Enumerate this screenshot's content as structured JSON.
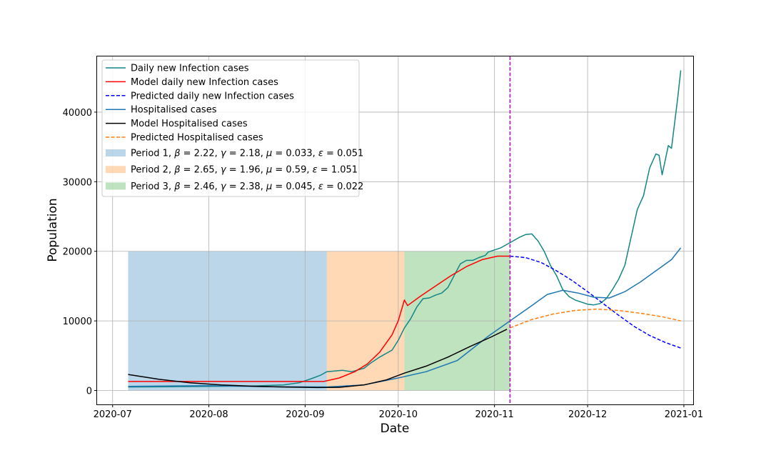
{
  "chart_data": {
    "type": "line",
    "title": "",
    "xlabel": "Date",
    "ylabel": "Population",
    "xlim": [
      "2020-06-26",
      "2021-01-04"
    ],
    "ylim": [
      -2000,
      48000
    ],
    "x_ticks": [
      {
        "date": "2020-07-01",
        "label": "2020-07"
      },
      {
        "date": "2020-08-01",
        "label": "2020-08"
      },
      {
        "date": "2020-09-01",
        "label": "2020-09"
      },
      {
        "date": "2020-10-01",
        "label": "2020-10"
      },
      {
        "date": "2020-11-01",
        "label": "2020-11"
      },
      {
        "date": "2020-12-01",
        "label": "2020-12"
      },
      {
        "date": "2021-01-01",
        "label": "2021-01"
      }
    ],
    "y_ticks": [
      {
        "value": 0,
        "label": "0"
      },
      {
        "value": 10000,
        "label": "10000"
      },
      {
        "value": 20000,
        "label": "20000"
      },
      {
        "value": 30000,
        "label": "30000"
      },
      {
        "value": 40000,
        "label": "40000"
      }
    ],
    "grid": true,
    "legend_position": "top-left",
    "periods": [
      {
        "name": "Period 1",
        "beta": "2.22",
        "gamma": "2.18",
        "mu": "0.033",
        "epsilon": "0.051",
        "start": "2020-07-06",
        "end": "2020-09-08",
        "y_max": 20000,
        "color": "#1f77b4"
      },
      {
        "name": "Period 2",
        "beta": "2.65",
        "gamma": "1.96",
        "mu": "0.59",
        "epsilon": "1.051",
        "start": "2020-09-08",
        "end": "2020-10-03",
        "y_max": 20000,
        "color": "#ff7f0e"
      },
      {
        "name": "Period 3",
        "beta": "2.46",
        "gamma": "2.38",
        "mu": "0.045",
        "epsilon": "0.022",
        "start": "2020-10-03",
        "end": "2020-11-06",
        "y_max": 20000,
        "color": "#2ca02c"
      }
    ],
    "vline": {
      "date": "2020-11-06",
      "color": "#bf00bf"
    },
    "series": [
      {
        "name": "Daily new Infection cases",
        "color": "#138686",
        "dash": "solid",
        "points": [
          [
            "2020-07-06",
            500
          ],
          [
            "2020-07-20",
            550
          ],
          [
            "2020-08-01",
            600
          ],
          [
            "2020-08-15",
            650
          ],
          [
            "2020-08-25",
            800
          ],
          [
            "2020-08-30",
            1100
          ],
          [
            "2020-09-03",
            1700
          ],
          [
            "2020-09-06",
            2200
          ],
          [
            "2020-09-08",
            2700
          ],
          [
            "2020-09-13",
            2900
          ],
          [
            "2020-09-16",
            2700
          ],
          [
            "2020-09-20",
            3200
          ],
          [
            "2020-09-22",
            3900
          ],
          [
            "2020-09-25",
            4800
          ],
          [
            "2020-09-29",
            5800
          ],
          [
            "2020-10-01",
            7200
          ],
          [
            "2020-10-03",
            9000
          ],
          [
            "2020-10-05",
            10300
          ],
          [
            "2020-10-07",
            12000
          ],
          [
            "2020-10-09",
            13200
          ],
          [
            "2020-10-11",
            13300
          ],
          [
            "2020-10-13",
            13700
          ],
          [
            "2020-10-15",
            14000
          ],
          [
            "2020-10-17",
            14800
          ],
          [
            "2020-10-19",
            16500
          ],
          [
            "2020-10-21",
            18200
          ],
          [
            "2020-10-23",
            18700
          ],
          [
            "2020-10-25",
            18700
          ],
          [
            "2020-10-27",
            19100
          ],
          [
            "2020-10-29",
            19400
          ],
          [
            "2020-10-30",
            19900
          ],
          [
            "2020-11-01",
            20200
          ],
          [
            "2020-11-03",
            20500
          ],
          [
            "2020-11-05",
            21000
          ],
          [
            "2020-11-07",
            21500
          ],
          [
            "2020-11-09",
            22000
          ],
          [
            "2020-11-11",
            22400
          ],
          [
            "2020-11-13",
            22500
          ],
          [
            "2020-11-15",
            21500
          ],
          [
            "2020-11-17",
            20000
          ],
          [
            "2020-11-19",
            18000
          ],
          [
            "2020-11-21",
            16500
          ],
          [
            "2020-11-23",
            14500
          ],
          [
            "2020-11-25",
            13500
          ],
          [
            "2020-11-27",
            13000
          ],
          [
            "2020-11-29",
            12700
          ],
          [
            "2020-12-01",
            12400
          ],
          [
            "2020-12-03",
            12300
          ],
          [
            "2020-12-05",
            12500
          ],
          [
            "2020-12-07",
            13200
          ],
          [
            "2020-12-09",
            14500
          ],
          [
            "2020-12-11",
            16000
          ],
          [
            "2020-12-13",
            18000
          ],
          [
            "2020-12-15",
            22000
          ],
          [
            "2020-12-17",
            26000
          ],
          [
            "2020-12-19",
            28000
          ],
          [
            "2020-12-21",
            32000
          ],
          [
            "2020-12-23",
            34000
          ],
          [
            "2020-12-24",
            33800
          ],
          [
            "2020-12-25",
            31000
          ],
          [
            "2020-12-27",
            35200
          ],
          [
            "2020-12-28",
            34800
          ],
          [
            "2020-12-30",
            42000
          ],
          [
            "2020-12-31",
            46000
          ]
        ]
      },
      {
        "name": "Model daily new Infection cases",
        "color": "#ff0000",
        "dash": "solid",
        "points": [
          [
            "2020-07-06",
            1300
          ],
          [
            "2020-08-01",
            1300
          ],
          [
            "2020-09-07",
            1300
          ],
          [
            "2020-09-12",
            1800
          ],
          [
            "2020-09-17",
            2700
          ],
          [
            "2020-09-21",
            3800
          ],
          [
            "2020-09-25",
            5500
          ],
          [
            "2020-09-29",
            8000
          ],
          [
            "2020-10-01",
            10000
          ],
          [
            "2020-10-03",
            13000
          ],
          [
            "2020-10-04",
            12200
          ],
          [
            "2020-10-08",
            13500
          ],
          [
            "2020-10-13",
            15000
          ],
          [
            "2020-10-18",
            16500
          ],
          [
            "2020-10-23",
            17800
          ],
          [
            "2020-10-28",
            18800
          ],
          [
            "2020-11-02",
            19300
          ],
          [
            "2020-11-06",
            19300
          ]
        ]
      },
      {
        "name": "Predicted daily new  Infection cases",
        "color": "#0000ff",
        "dash": "dashed",
        "points": [
          [
            "2020-11-06",
            19300
          ],
          [
            "2020-11-11",
            19100
          ],
          [
            "2020-11-16",
            18400
          ],
          [
            "2020-11-21",
            17200
          ],
          [
            "2020-11-26",
            15800
          ],
          [
            "2020-12-01",
            14200
          ],
          [
            "2020-12-06",
            12500
          ],
          [
            "2020-12-11",
            10800
          ],
          [
            "2020-12-16",
            9200
          ],
          [
            "2020-12-21",
            7900
          ],
          [
            "2020-12-26",
            6900
          ],
          [
            "2020-12-31",
            6100
          ]
        ]
      },
      {
        "name": "Hospitalised cases",
        "color": "#1f77b4",
        "dash": "solid",
        "points": [
          [
            "2020-07-06",
            600
          ],
          [
            "2020-08-01",
            700
          ],
          [
            "2020-08-20",
            550
          ],
          [
            "2020-09-08",
            500
          ],
          [
            "2020-09-20",
            800
          ],
          [
            "2020-10-01",
            1800
          ],
          [
            "2020-10-10",
            2700
          ],
          [
            "2020-10-20",
            4300
          ],
          [
            "2020-10-30",
            7800
          ],
          [
            "2020-11-06",
            10000
          ],
          [
            "2020-11-13",
            12200
          ],
          [
            "2020-11-18",
            13800
          ],
          [
            "2020-11-23",
            14400
          ],
          [
            "2020-11-28",
            14000
          ],
          [
            "2020-12-03",
            13400
          ],
          [
            "2020-12-08",
            13300
          ],
          [
            "2020-12-13",
            14200
          ],
          [
            "2020-12-18",
            15600
          ],
          [
            "2020-12-23",
            17200
          ],
          [
            "2020-12-28",
            18800
          ],
          [
            "2020-12-31",
            20500
          ]
        ]
      },
      {
        "name": "Model Hospitalised cases",
        "color": "#000000",
        "dash": "solid",
        "points": [
          [
            "2020-07-06",
            2300
          ],
          [
            "2020-07-16",
            1600
          ],
          [
            "2020-07-26",
            1100
          ],
          [
            "2020-08-05",
            800
          ],
          [
            "2020-08-15",
            620
          ],
          [
            "2020-08-25",
            500
          ],
          [
            "2020-09-05",
            420
          ],
          [
            "2020-09-12",
            450
          ],
          [
            "2020-09-20",
            800
          ],
          [
            "2020-09-27",
            1500
          ],
          [
            "2020-10-03",
            2500
          ],
          [
            "2020-10-10",
            3500
          ],
          [
            "2020-10-17",
            4800
          ],
          [
            "2020-10-24",
            6300
          ],
          [
            "2020-10-31",
            7700
          ],
          [
            "2020-11-05",
            8800
          ]
        ]
      },
      {
        "name": "Predicted Hospitalised cases",
        "color": "#ff7f0e",
        "dash": "dashed",
        "points": [
          [
            "2020-11-06",
            9000
          ],
          [
            "2020-11-13",
            10200
          ],
          [
            "2020-11-20",
            11000
          ],
          [
            "2020-11-27",
            11500
          ],
          [
            "2020-12-04",
            11700
          ],
          [
            "2020-12-11",
            11500
          ],
          [
            "2020-12-18",
            11100
          ],
          [
            "2020-12-25",
            10600
          ],
          [
            "2020-12-31",
            10000
          ]
        ]
      }
    ]
  }
}
